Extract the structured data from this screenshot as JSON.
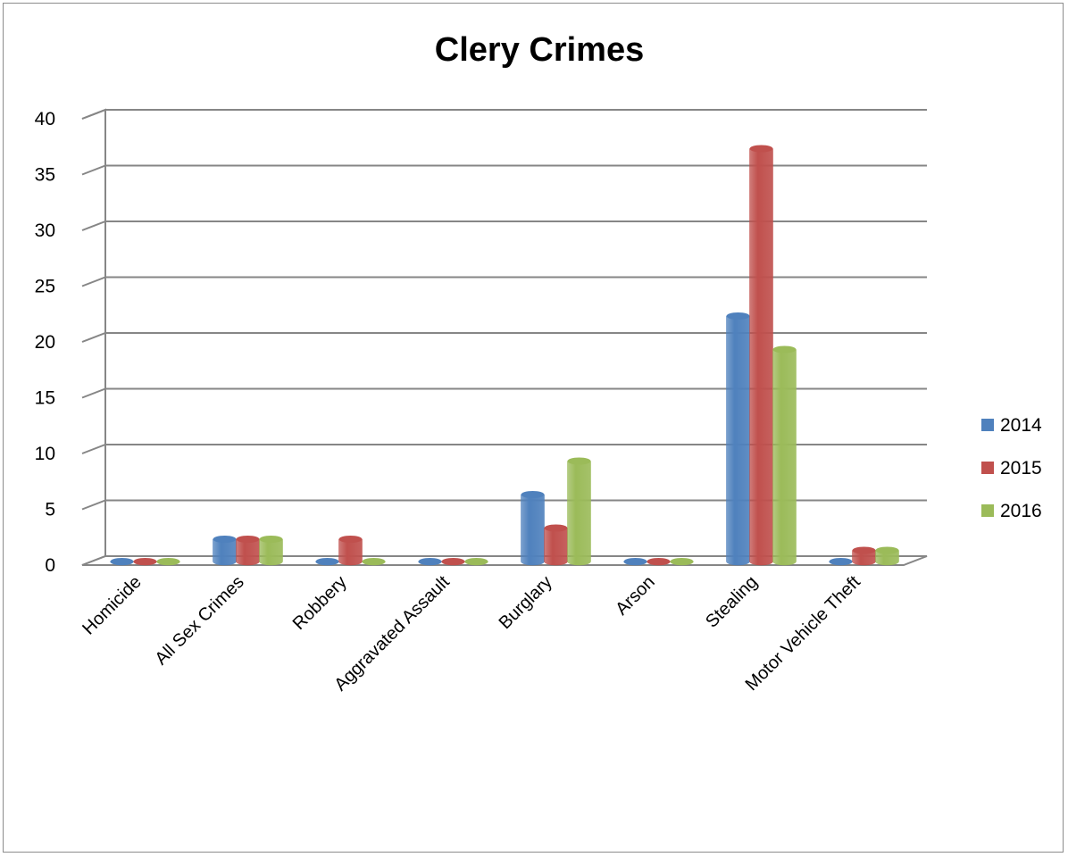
{
  "chart_data": {
    "type": "bar",
    "title": "Clery Crimes",
    "xlabel": "",
    "ylabel": "",
    "ylim": [
      0,
      40
    ],
    "yticks": [
      0,
      5,
      10,
      15,
      20,
      25,
      30,
      35,
      40
    ],
    "grid": true,
    "legend_position": "right",
    "categories": [
      "Homicide",
      "All Sex Crimes",
      "Robbery",
      "Aggravated Assault",
      "Burglary",
      "Arson",
      "Stealing",
      "Motor Vehicle Theft"
    ],
    "series": [
      {
        "name": "2014",
        "color": "#4F81BD",
        "values": [
          0,
          2,
          0,
          0,
          6,
          0,
          22,
          0
        ]
      },
      {
        "name": "2015",
        "color": "#C0504D",
        "values": [
          0,
          2,
          2,
          0,
          3,
          0,
          37,
          1
        ]
      },
      {
        "name": "2016",
        "color": "#9BBB59",
        "values": [
          0,
          2,
          0,
          0,
          9,
          0,
          19,
          1
        ]
      }
    ]
  }
}
